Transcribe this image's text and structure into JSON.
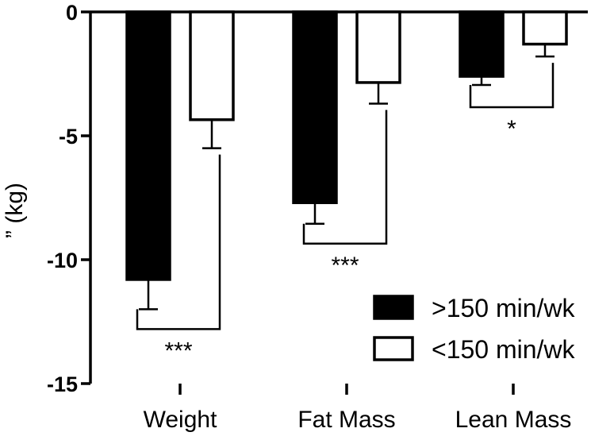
{
  "chart_data": {
    "type": "bar",
    "title": "",
    "xlabel": "",
    "ylabel": "” (kg)",
    "ylim": [
      -15,
      0
    ],
    "yticks": [
      0,
      -5,
      -10,
      -15
    ],
    "ytick_labels": [
      "0",
      "-5",
      "-10",
      "-15"
    ],
    "categories": [
      "Weight",
      "Fat Mass",
      "Lean Mass"
    ],
    "series": [
      {
        "name": ">150 min/wk",
        "values": [
          -10.8,
          -7.7,
          -2.6
        ],
        "errors": [
          1.2,
          0.85,
          0.35
        ],
        "fill": "#000000"
      },
      {
        "name": "<150 min/wk",
        "values": [
          -4.35,
          -2.85,
          -1.3
        ],
        "errors": [
          1.15,
          0.85,
          0.5
        ],
        "fill": "#ffffff"
      }
    ],
    "significance": [
      "***",
      "***",
      "*"
    ],
    "legend_position": "bottom-right",
    "grid": false
  }
}
